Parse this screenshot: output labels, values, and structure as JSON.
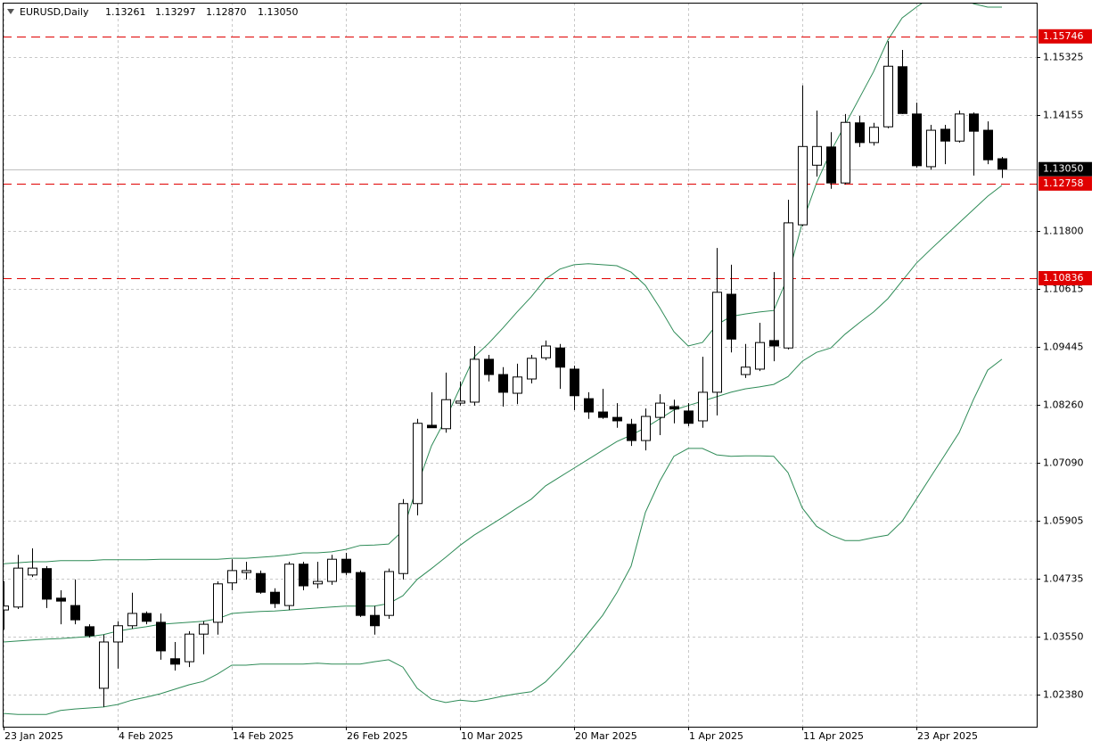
{
  "chart_data": {
    "type": "candlestick",
    "title": "EURUSD,Daily",
    "header_values": [
      "1.13261",
      "1.13297",
      "1.12870",
      "1.13050"
    ],
    "categories": [
      "23 Jan 2025",
      null,
      null,
      null,
      null,
      null,
      null,
      null,
      "4 Feb 2025",
      null,
      null,
      null,
      null,
      null,
      null,
      null,
      "14 Feb 2025",
      null,
      null,
      null,
      null,
      null,
      null,
      null,
      "26 Feb 2025",
      null,
      null,
      null,
      null,
      null,
      null,
      null,
      "10 Mar 2025",
      null,
      null,
      null,
      null,
      null,
      null,
      null,
      "20 Mar 2025",
      null,
      null,
      null,
      null,
      null,
      null,
      null,
      "1 Apr 2025",
      null,
      null,
      null,
      null,
      null,
      null,
      null,
      "11 Apr 2025",
      null,
      null,
      null,
      null,
      null,
      null,
      null,
      "23 Apr 2025",
      null,
      null,
      null,
      null,
      null,
      null
    ],
    "open": [
      1.041,
      1.0416,
      1.0481,
      1.0494,
      1.0434,
      1.0419,
      1.0376,
      1.0251,
      1.0345,
      1.0378,
      1.0403,
      1.0385,
      1.0311,
      1.0305,
      1.0361,
      1.0385,
      1.0465,
      1.0486,
      1.0484,
      1.0446,
      1.0419,
      1.0503,
      1.0463,
      1.0468,
      1.0513,
      1.0486,
      1.0399,
      1.0399,
      1.0484,
      1.0626,
      1.0785,
      1.0778,
      1.083,
      1.0832,
      1.0919,
      1.0888,
      1.085,
      1.0879,
      1.0922,
      1.0942,
      1.0899,
      1.0839,
      1.0812,
      1.0801,
      1.0787,
      1.0754,
      1.0801,
      1.0823,
      1.0814,
      1.0794,
      1.0852,
      1.1051,
      1.0888,
      1.0899,
      1.0957,
      1.0942,
      1.1192,
      1.1313,
      1.135,
      1.1277,
      1.1399,
      1.1359,
      1.1391,
      1.1513,
      1.1417,
      1.131,
      1.1386,
      1.1362,
      1.1417,
      1.1384,
      1.13261
    ],
    "high": [
      1.0468,
      1.0522,
      1.0535,
      1.0499,
      1.045,
      1.0472,
      1.0381,
      1.036,
      1.0387,
      1.0445,
      1.0407,
      1.0403,
      1.0345,
      1.0367,
      1.0387,
      1.0468,
      1.0513,
      1.0508,
      1.049,
      1.0454,
      1.0508,
      1.0508,
      1.0508,
      1.0522,
      1.0526,
      1.049,
      1.0418,
      1.0494,
      1.0635,
      1.0798,
      1.0852,
      1.0892,
      1.0874,
      1.0946,
      1.0928,
      1.0903,
      1.091,
      1.0928,
      1.0957,
      1.095,
      1.0906,
      1.0852,
      1.0859,
      1.083,
      1.0798,
      1.0819,
      1.0848,
      1.0837,
      1.083,
      1.0924,
      1.1145,
      1.1111,
      1.095,
      1.0993,
      1.1096,
      1.1243,
      1.1475,
      1.1424,
      1.138,
      1.1417,
      1.1413,
      1.1399,
      1.1565,
      1.1547,
      1.144,
      1.1395,
      1.1395,
      1.1424,
      1.142,
      1.1402,
      1.13297
    ],
    "low": [
      1.037,
      1.0412,
      1.0477,
      1.0414,
      1.0381,
      1.0381,
      1.0354,
      1.0213,
      1.0291,
      1.0372,
      1.0381,
      1.0309,
      1.0287,
      1.0294,
      1.032,
      1.036,
      1.045,
      1.0472,
      1.0443,
      1.0414,
      1.041,
      1.045,
      1.0454,
      1.0461,
      1.0481,
      1.0396,
      1.036,
      1.0392,
      1.0472,
      1.0602,
      1.078,
      1.077,
      1.0825,
      1.0825,
      1.0874,
      1.0823,
      1.0828,
      1.087,
      1.0917,
      1.0859,
      1.0816,
      1.0798,
      1.0798,
      1.078,
      1.0743,
      1.0734,
      1.0765,
      1.0789,
      1.0783,
      1.078,
      1.0805,
      1.0933,
      1.0881,
      1.0895,
      1.0915,
      1.0939,
      1.1189,
      1.129,
      1.1265,
      1.1274,
      1.135,
      1.1353,
      1.1388,
      1.1417,
      1.1308,
      1.1304,
      1.1315,
      1.1359,
      1.1292,
      1.1315,
      1.1287
    ],
    "close": [
      1.0418,
      1.0495,
      1.0495,
      1.0432,
      1.0428,
      1.039,
      1.0358,
      1.0345,
      1.0378,
      1.0403,
      1.0387,
      1.0327,
      1.03,
      1.0361,
      1.0381,
      1.0463,
      1.049,
      1.049,
      1.0446,
      1.0423,
      1.0503,
      1.0459,
      1.0468,
      1.0513,
      1.0486,
      1.0399,
      1.0378,
      1.0488,
      1.0626,
      1.0789,
      1.078,
      1.0837,
      1.0834,
      1.0919,
      1.0888,
      1.0852,
      1.0883,
      1.0921,
      1.0946,
      1.0903,
      1.0845,
      1.0812,
      1.0801,
      1.0794,
      1.0754,
      1.0803,
      1.083,
      1.0818,
      1.0789,
      1.0852,
      1.1055,
      1.096,
      1.0903,
      1.0953,
      1.0946,
      1.1196,
      1.1351,
      1.1351,
      1.1277,
      1.14,
      1.1359,
      1.139,
      1.1514,
      1.1418,
      1.1312,
      1.1384,
      1.1362,
      1.1417,
      1.1382,
      1.1324,
      1.1305
    ],
    "up_color": "#ffffff",
    "down_color": "#000000",
    "bands": [
      {
        "color": "#2e8b57",
        "values": [
          1.0504,
          1.0506,
          1.0508,
          1.0508,
          1.051,
          1.051,
          1.051,
          1.0512,
          1.0512,
          1.0512,
          1.0512,
          1.0513,
          1.0513,
          1.0513,
          1.0513,
          1.0513,
          1.0515,
          1.0515,
          1.0517,
          1.0519,
          1.0522,
          1.0526,
          1.0526,
          1.0528,
          1.0533,
          1.0541,
          1.0542,
          1.0544,
          1.0571,
          1.0662,
          1.0743,
          1.0798,
          1.0861,
          1.0924,
          1.0951,
          1.0982,
          1.1015,
          1.1046,
          1.1082,
          1.1102,
          1.1111,
          1.1113,
          1.1111,
          1.1109,
          1.1096,
          1.1069,
          1.1024,
          1.0975,
          1.0946,
          1.0953,
          1.0989,
          1.1006,
          1.1011,
          1.1015,
          1.1018,
          1.1087,
          1.1196,
          1.1277,
          1.1341,
          1.1395,
          1.1449,
          1.1503,
          1.1567,
          1.1612,
          1.1634,
          1.1654,
          1.1659,
          1.1656,
          1.1641,
          1.1634,
          1.1634
        ]
      },
      {
        "color": "#2e8b57",
        "values": [
          1.0345,
          1.0347,
          1.0349,
          1.0351,
          1.0352,
          1.0354,
          1.0356,
          1.036,
          1.0367,
          1.0372,
          1.0376,
          1.0381,
          1.0383,
          1.0385,
          1.0387,
          1.0392,
          1.0403,
          1.0405,
          1.0407,
          1.0408,
          1.041,
          1.0412,
          1.0414,
          1.0416,
          1.0418,
          1.0418,
          1.0418,
          1.0423,
          1.0439,
          1.0472,
          1.0494,
          1.0517,
          1.0541,
          1.0562,
          1.058,
          1.0598,
          1.0617,
          1.0635,
          1.0662,
          1.068,
          1.0698,
          1.0716,
          1.0734,
          1.0752,
          1.0765,
          1.078,
          1.0798,
          1.0816,
          1.0825,
          1.0834,
          1.0843,
          1.0852,
          1.0859,
          1.0863,
          1.0868,
          1.0884,
          1.0915,
          1.0933,
          1.0942,
          1.097,
          1.0993,
          1.1015,
          1.1042,
          1.1078,
          1.1114,
          1.1142,
          1.1169,
          1.1196,
          1.1223,
          1.125,
          1.1272
        ]
      },
      {
        "color": "#2e8b57",
        "values": [
          1.02,
          1.0198,
          1.0198,
          1.0198,
          1.0206,
          1.0209,
          1.0211,
          1.0213,
          1.0218,
          1.0227,
          1.0233,
          1.024,
          1.0249,
          1.0258,
          1.0265,
          1.028,
          1.0298,
          1.0298,
          1.03,
          1.03,
          1.03,
          1.03,
          1.0302,
          1.03,
          1.03,
          1.03,
          1.0305,
          1.0309,
          1.0294,
          1.0251,
          1.0229,
          1.0222,
          1.0227,
          1.0224,
          1.0229,
          1.0235,
          1.024,
          1.0244,
          1.0264,
          1.0294,
          1.0327,
          1.0363,
          1.0399,
          1.0445,
          1.0499,
          1.0608,
          1.0671,
          1.0722,
          1.0738,
          1.0738,
          1.0725,
          1.0722,
          1.0723,
          1.0723,
          1.0722,
          1.0689,
          1.0617,
          1.058,
          1.0562,
          1.0551,
          1.0551,
          1.0557,
          1.0562,
          1.059,
          1.0635,
          1.068,
          1.0725,
          1.077,
          1.0837,
          1.0897,
          1.0919
        ]
      }
    ],
    "hlines": [
      1.15746,
      1.12758,
      1.10836
    ],
    "hline_color": "#e00000",
    "last_price": {
      "value": 1.1305,
      "label": "1.13050"
    },
    "ylim": [
      1.0173,
      1.1643
    ],
    "yticks": [
      1.15325,
      1.14155,
      {
        "value": 1.118,
        "label": "1.11800"
      },
      1.10615,
      1.09445,
      {
        "value": 1.0826,
        "label": "1.08260"
      },
      {
        "value": 1.0709,
        "label": "1.07090"
      },
      1.05905,
      1.04735,
      {
        "value": 1.0355,
        "label": "1.03550"
      },
      {
        "value": 1.0238,
        "label": "1.02380"
      }
    ],
    "grid": true
  }
}
